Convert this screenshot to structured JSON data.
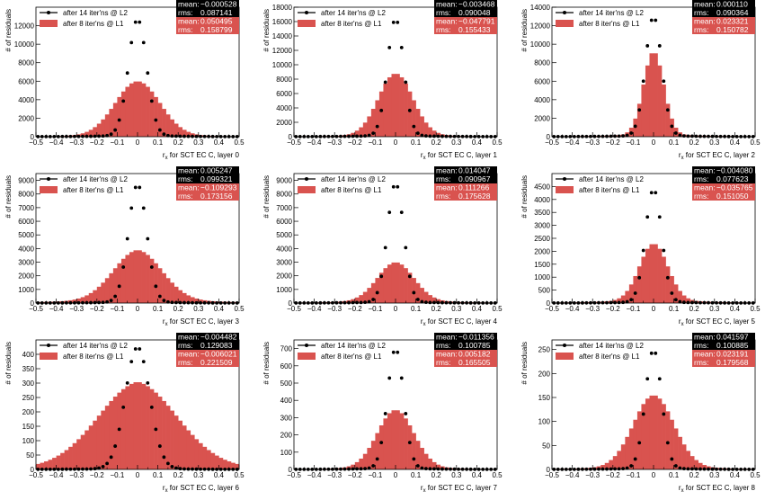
{
  "colors": {
    "hist": "#d9534f",
    "hist_stat_bg": "#d9534f",
    "points": "#000000",
    "points_stat_bg": "#000000",
    "stat_text": "#ffffff"
  },
  "labels": {
    "ylabel": "# of residuals",
    "legend_points": "after 14 iter'ns @ L2",
    "legend_hist": "after 8 iter'ns @ L1",
    "mean": "mean:",
    "rms": "rms:"
  },
  "chart_data": [
    {
      "type": "bar",
      "title": "",
      "xlabel": "r_x for SCT EC C, layer 0",
      "ylabel": "# of residuals",
      "xlim": [
        -0.5,
        0.5
      ],
      "ylim": [
        0,
        14000
      ],
      "yticks": [
        0,
        2000,
        4000,
        6000,
        8000,
        10000,
        12000
      ],
      "xticks": [
        "-0.5",
        "-0.4",
        "-0.3",
        "-0.2",
        "-0.1",
        "0",
        "0.1",
        "0.2",
        "0.3",
        "0.4",
        "0.5"
      ],
      "hist_peak": 6000,
      "points_peak": 12700,
      "hist_width": 0.11,
      "points_width": 0.045,
      "hist_tail": 0.04,
      "stats": {
        "points_mean": "−0.000528",
        "points_rms": "0.087141",
        "hist_mean": "0.050495",
        "hist_rms": "0.158799"
      }
    },
    {
      "type": "bar",
      "title": "",
      "xlabel": "r_x for SCT EC C, layer 1",
      "ylabel": "# of residuals",
      "xlim": [
        -0.5,
        0.5
      ],
      "ylim": [
        0,
        18000
      ],
      "yticks": [
        0,
        2000,
        4000,
        6000,
        8000,
        10000,
        12000,
        14000,
        16000,
        18000
      ],
      "xticks": [
        "-0.5",
        "-0.4",
        "-0.3",
        "-0.2",
        "-0.1",
        "0",
        "0.1",
        "0.2",
        "0.3",
        "0.4",
        "0.5"
      ],
      "hist_peak": 8800,
      "points_peak": 16400,
      "hist_width": 0.085,
      "points_width": 0.04,
      "hist_tail": 0.035,
      "stats": {
        "points_mean": "−0.003468",
        "points_rms": "0.090048",
        "hist_mean": "−0.047791",
        "hist_rms": "0.155433"
      }
    },
    {
      "type": "bar",
      "title": "",
      "xlabel": "r_x for SCT EC C, layer 2",
      "ylabel": "# of residuals",
      "xlim": [
        -0.5,
        0.5
      ],
      "ylim": [
        0,
        14000
      ],
      "yticks": [
        0,
        2000,
        4000,
        6000,
        8000,
        10000,
        12000,
        14000
      ],
      "xticks": [
        "-0.5",
        "-0.4",
        "-0.3",
        "-0.2",
        "-0.1",
        "0",
        "0.1",
        "0.2",
        "0.3",
        "0.4",
        "0.5"
      ],
      "hist_peak": 9200,
      "points_peak": 13000,
      "hist_width": 0.05,
      "points_width": 0.04,
      "hist_tail": 0.03,
      "stats": {
        "points_mean": "0.000110",
        "points_rms": "0.090364",
        "hist_mean": "0.023321",
        "hist_rms": "0.150782"
      }
    },
    {
      "type": "bar",
      "title": "",
      "xlabel": "r_x for SCT EC C, layer 3",
      "ylabel": "# of residuals",
      "xlim": [
        -0.5,
        0.5
      ],
      "ylim": [
        0,
        9500
      ],
      "yticks": [
        0,
        1000,
        2000,
        3000,
        4000,
        5000,
        6000,
        7000,
        8000,
        9000
      ],
      "xticks": [
        "-0.5",
        "-0.4",
        "-0.3",
        "-0.2",
        "-0.1",
        "0",
        "0.1",
        "0.2",
        "0.3",
        "0.4",
        "0.5"
      ],
      "hist_peak": 3900,
      "points_peak": 8700,
      "hist_width": 0.12,
      "points_width": 0.045,
      "hist_tail": 0.12,
      "stats": {
        "points_mean": "0.005247",
        "points_rms": "0.099321",
        "hist_mean": "−0.109293",
        "hist_rms": "0.173156"
      }
    },
    {
      "type": "bar",
      "title": "",
      "xlabel": "r_x for SCT EC C, layer 4",
      "ylabel": "# of residuals",
      "xlim": [
        -0.5,
        0.5
      ],
      "ylim": [
        0,
        9500
      ],
      "yticks": [
        0,
        1000,
        2000,
        3000,
        4000,
        5000,
        6000,
        7000,
        8000,
        9000
      ],
      "xticks": [
        "-0.5",
        "-0.4",
        "-0.3",
        "-0.2",
        "-0.1",
        "0",
        "0.1",
        "0.2",
        "0.3",
        "0.4",
        "0.5"
      ],
      "hist_peak": 3000,
      "points_peak": 8800,
      "hist_width": 0.09,
      "points_width": 0.04,
      "hist_tail": 0.08,
      "stats": {
        "points_mean": "0.014047",
        "points_rms": "0.090967",
        "hist_mean": "0.111266",
        "hist_rms": "0.175628"
      }
    },
    {
      "type": "bar",
      "title": "",
      "xlabel": "r_x for SCT EC C, layer 5",
      "ylabel": "# of residuals",
      "xlim": [
        -0.5,
        0.5
      ],
      "ylim": [
        0,
        5000
      ],
      "yticks": [
        0,
        500,
        1000,
        1500,
        2000,
        2500,
        3000,
        3500,
        4000,
        4500
      ],
      "xticks": [
        "-0.5",
        "-0.4",
        "-0.3",
        "-0.2",
        "-0.1",
        "0",
        "0.1",
        "0.2",
        "0.3",
        "0.4",
        "0.5"
      ],
      "hist_peak": 2300,
      "points_peak": 4400,
      "hist_width": 0.07,
      "points_width": 0.04,
      "hist_tail": 0.06,
      "stats": {
        "points_mean": "−0.004080",
        "points_rms": "0.077623",
        "hist_mean": "−0.035765",
        "hist_rms": "0.151050"
      }
    },
    {
      "type": "bar",
      "title": "",
      "xlabel": "r_x for SCT EC C, layer 6",
      "ylabel": "# of residuals",
      "xlim": [
        -0.5,
        0.5
      ],
      "ylim": [
        0,
        450
      ],
      "yticks": [
        0,
        50,
        100,
        150,
        200,
        250,
        300,
        350,
        400
      ],
      "xticks": [
        "-0.5",
        "-0.4",
        "-0.3",
        "-0.2",
        "-0.1",
        "0",
        "0.1",
        "0.2",
        "0.3",
        "0.4",
        "0.5"
      ],
      "hist_peak": 305,
      "points_peak": 425,
      "hist_width": 0.2,
      "points_width": 0.06,
      "hist_tail": 0.14,
      "stats": {
        "points_mean": "−0.004482",
        "points_rms": "0.129083",
        "hist_mean": "−0.006021",
        "hist_rms": "0.221509"
      }
    },
    {
      "type": "bar",
      "title": "",
      "xlabel": "r_x for SCT EC C, layer 7",
      "ylabel": "# of residuals",
      "xlim": [
        -0.5,
        0.5
      ],
      "ylim": [
        0,
        750
      ],
      "yticks": [
        0,
        100,
        200,
        300,
        400,
        500,
        600,
        700
      ],
      "xticks": [
        "-0.5",
        "-0.4",
        "-0.3",
        "-0.2",
        "-0.1",
        "0",
        "0.1",
        "0.2",
        "0.3",
        "0.4",
        "0.5"
      ],
      "hist_peak": 345,
      "points_peak": 700,
      "hist_width": 0.09,
      "points_width": 0.04,
      "hist_tail": 0.04,
      "stats": {
        "points_mean": "−0.011356",
        "points_rms": "0.100785",
        "hist_mean": "0.005182",
        "hist_rms": "0.165505"
      }
    },
    {
      "type": "bar",
      "title": "",
      "xlabel": "r_x for SCT EC C, layer 8",
      "ylabel": "# of residuals",
      "xlim": [
        -0.5,
        0.5
      ],
      "ylim": [
        0,
        270
      ],
      "yticks": [
        0,
        50,
        100,
        150,
        200,
        250
      ],
      "xticks": [
        "-0.5",
        "-0.4",
        "-0.3",
        "-0.2",
        "-0.1",
        "0",
        "0.1",
        "0.2",
        "0.3",
        "0.4",
        "0.5"
      ],
      "hist_peak": 155,
      "points_peak": 250,
      "hist_width": 0.1,
      "points_width": 0.04,
      "hist_tail": 0.05,
      "stats": {
        "points_mean": "0.041597",
        "points_rms": "0.100885",
        "hist_mean": "0.023191",
        "hist_rms": "0.179568"
      }
    }
  ]
}
